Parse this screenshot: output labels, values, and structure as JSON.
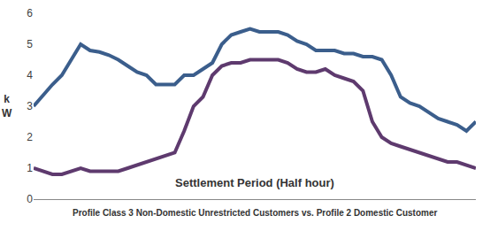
{
  "chart_data": {
    "type": "line",
    "x_label": "Settlement Period (Half hour)",
    "y_label": "k W",
    "caption": "Profile Class 3 Non-Domestic Unrestricted Customers vs. Profile 2 Domestic Customer",
    "categories": [
      null,
      null,
      null,
      null,
      null,
      null,
      null,
      null,
      null,
      null,
      null,
      null,
      null,
      null,
      null,
      null,
      null,
      null,
      null,
      null,
      null,
      null,
      null,
      null,
      null,
      null,
      null,
      null,
      null,
      null,
      null,
      null,
      null,
      null,
      null,
      null,
      null,
      null,
      null,
      null,
      null,
      null,
      null,
      null,
      null,
      null,
      null,
      null
    ],
    "series": [
      {
        "color": "#3B5E8C",
        "values": [
          3.0,
          3.35,
          3.7,
          4.0,
          4.5,
          5.0,
          4.8,
          4.75,
          4.65,
          4.5,
          4.3,
          4.1,
          4.0,
          3.7,
          3.7,
          3.7,
          4.0,
          4.0,
          4.2,
          4.4,
          5.0,
          5.3,
          5.4,
          5.5,
          5.4,
          5.4,
          5.4,
          5.3,
          5.1,
          5.0,
          4.8,
          4.8,
          4.8,
          4.7,
          4.7,
          4.6,
          4.6,
          4.5,
          4.0,
          3.3,
          3.1,
          3.0,
          2.8,
          2.6,
          2.5,
          2.4,
          2.2,
          2.5
        ]
      },
      {
        "color": "#5E3A6E",
        "values": [
          1.0,
          0.9,
          0.8,
          0.8,
          0.9,
          1.0,
          0.9,
          0.9,
          0.9,
          0.9,
          1.0,
          1.1,
          1.2,
          1.3,
          1.4,
          1.5,
          2.2,
          3.0,
          3.3,
          4.0,
          4.3,
          4.4,
          4.4,
          4.5,
          4.5,
          4.5,
          4.5,
          4.4,
          4.2,
          4.1,
          4.1,
          4.2,
          4.0,
          3.9,
          3.8,
          3.5,
          2.5,
          2.0,
          1.8,
          1.7,
          1.6,
          1.5,
          1.4,
          1.3,
          1.2,
          1.2,
          1.1,
          1.0
        ]
      }
    ],
    "ylim": [
      0,
      6
    ],
    "yticks": [
      0,
      1,
      2,
      3,
      4,
      5,
      6
    ],
    "grid": false,
    "tick_labels": "y"
  }
}
